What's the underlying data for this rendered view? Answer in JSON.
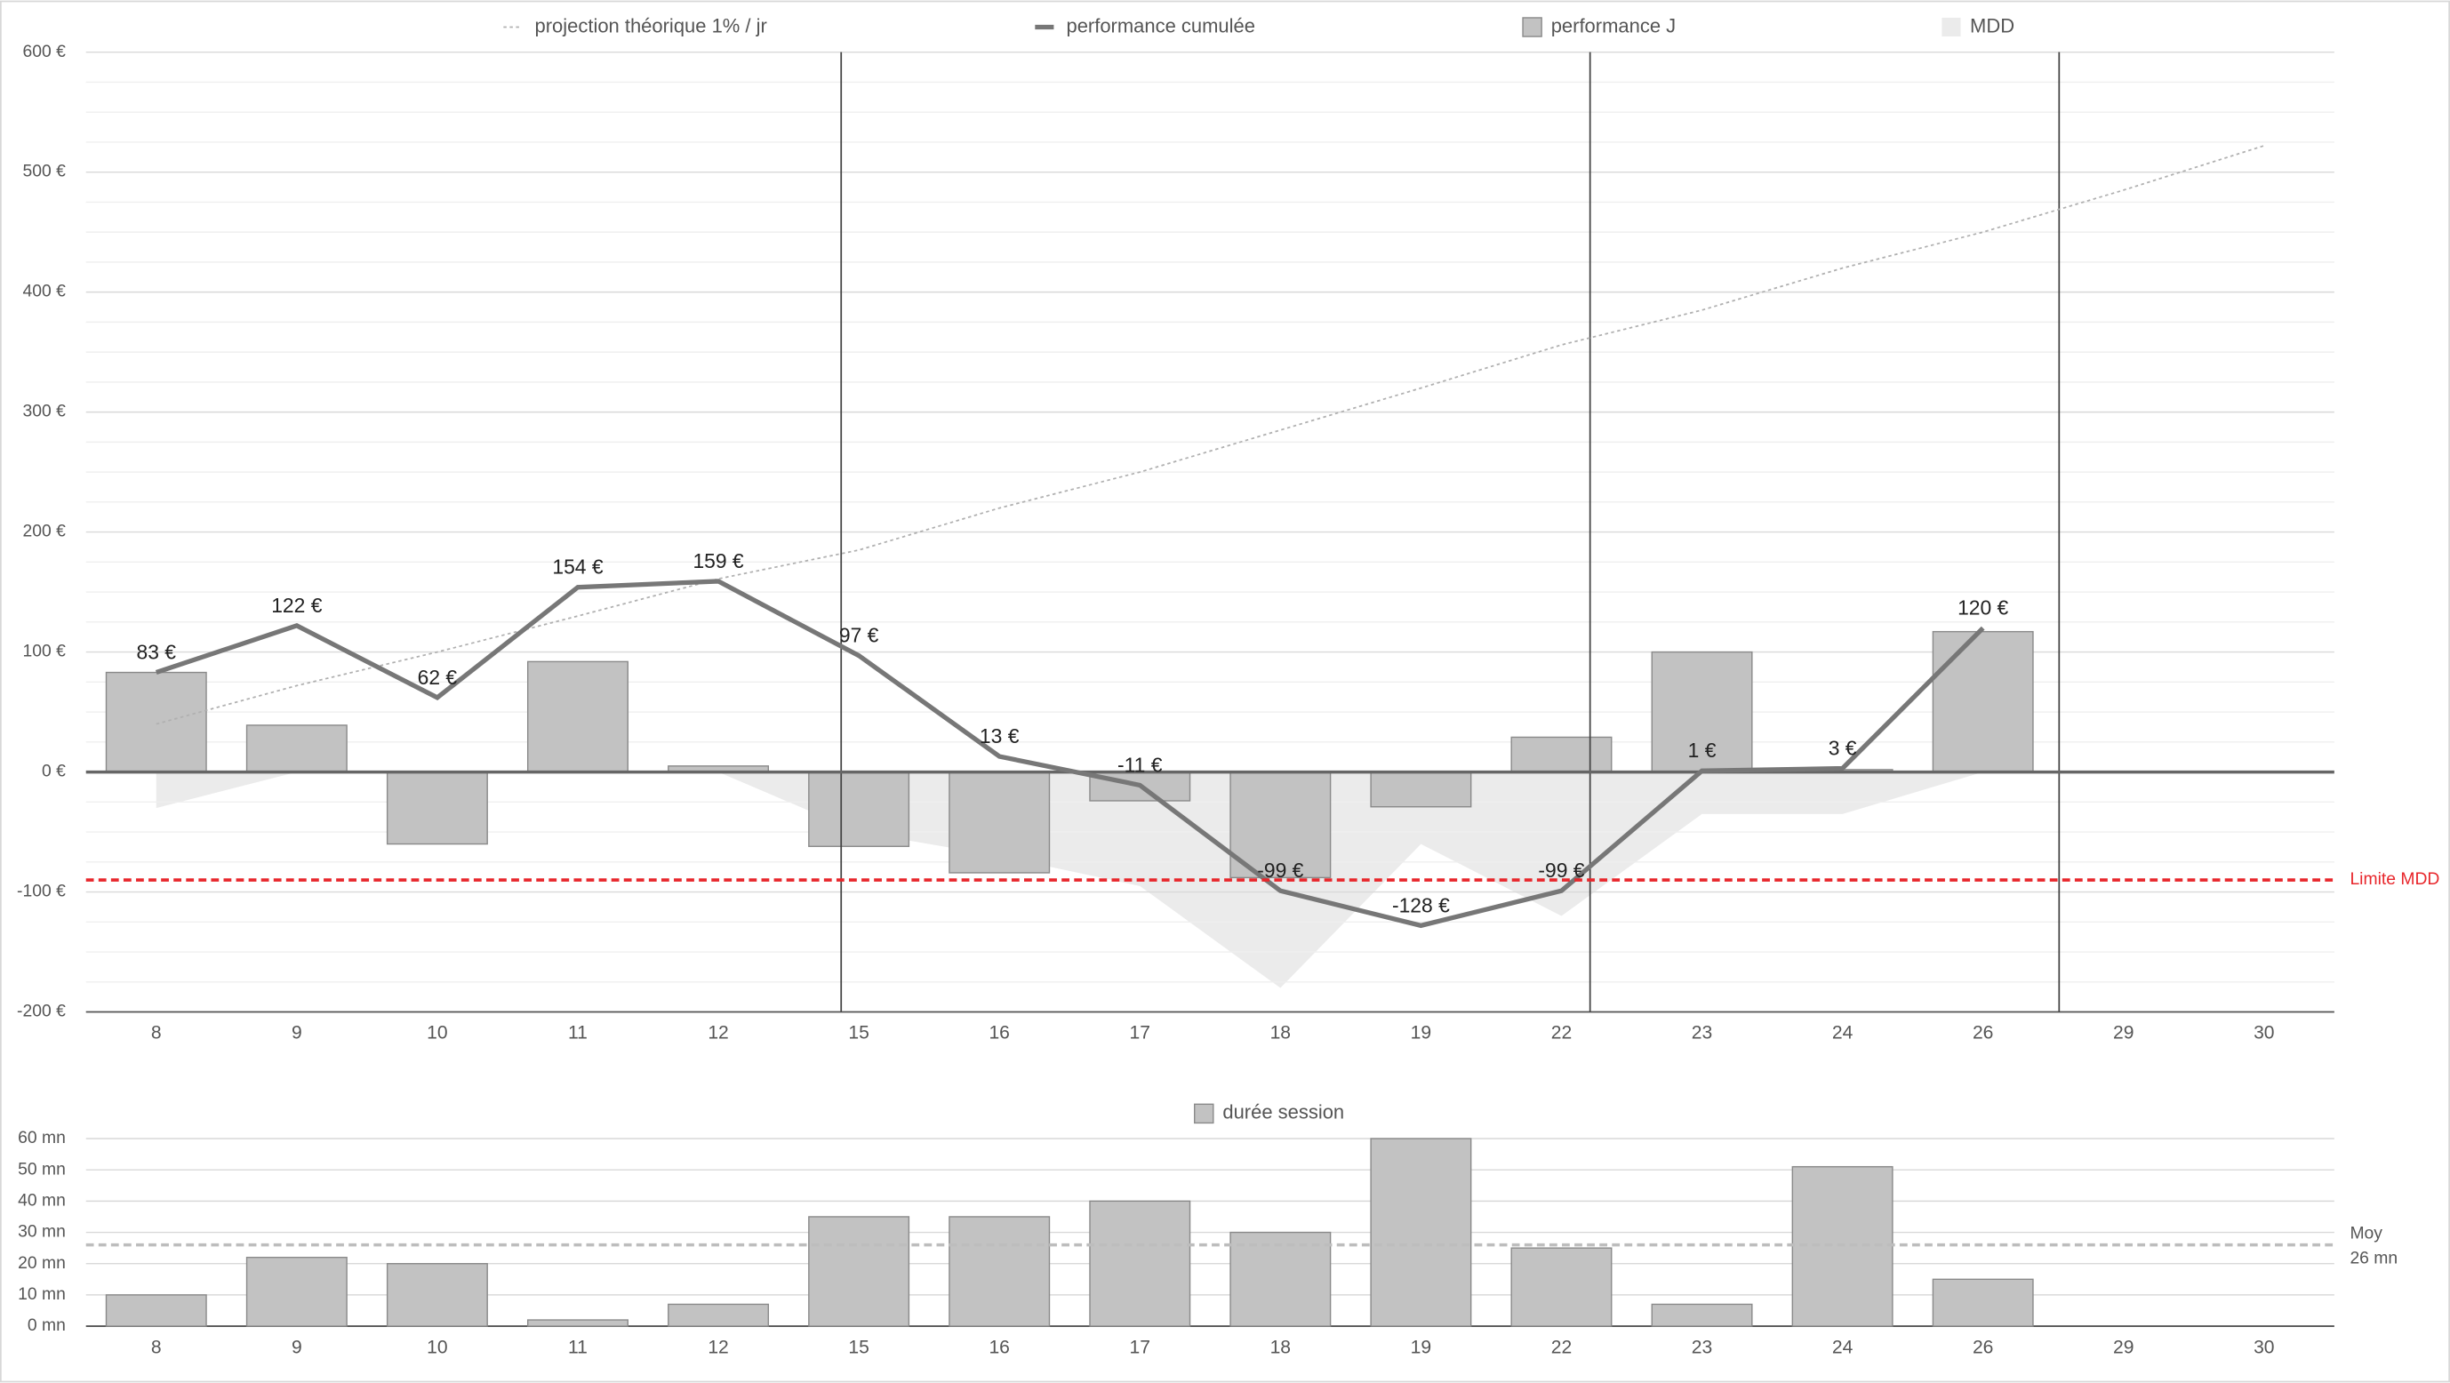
{
  "chart_data": [
    {
      "type": "bar",
      "categories": [
        "8",
        "9",
        "10",
        "11",
        "12",
        "15",
        "16",
        "17",
        "18",
        "19",
        "22",
        "23",
        "24",
        "26",
        "29",
        "30"
      ],
      "series": [
        {
          "name": "projection théorique 1% / jr",
          "type": "line",
          "dashed": true,
          "color": "#b0b0b0",
          "values": [
            40,
            72,
            100,
            130,
            161,
            185,
            220,
            250,
            285,
            320,
            356,
            385,
            420,
            450,
            485,
            522
          ]
        },
        {
          "name": "performance cumulée",
          "type": "line",
          "color": "#777777",
          "values": [
            83,
            122,
            62,
            154,
            159,
            97,
            13,
            -11,
            -99,
            -128,
            -99,
            1,
            3,
            120,
            null,
            null
          ],
          "value_labels": [
            "83 €",
            "122 €",
            "62 €",
            "154 €",
            "159 €",
            "97 €",
            "13 €",
            "-11 €",
            "-99 €",
            "-128 €",
            "-99 €",
            "1 €",
            "3 €",
            "120 €",
            null,
            null
          ]
        },
        {
          "name": "performance J",
          "type": "bar",
          "color": "#c2c2c2",
          "values": [
            83,
            39,
            -60,
            92,
            5,
            -62,
            -84,
            -24,
            -88,
            -29,
            29,
            100,
            2,
            117,
            null,
            null
          ]
        },
        {
          "name": "MDD",
          "type": "area",
          "color": "#ebebeb",
          "values": [
            -30,
            0,
            0,
            0,
            0,
            -50,
            -70,
            -95,
            -180,
            -60,
            -120,
            -35,
            -35,
            0,
            null,
            null
          ]
        }
      ],
      "ylim": [
        -200,
        600
      ],
      "yticks": [
        {
          "value": -200,
          "label": "-200 €"
        },
        {
          "value": -100,
          "label": "-100 €"
        },
        {
          "value": 0,
          "label": "0 €"
        },
        {
          "value": 100,
          "label": "100 €"
        },
        {
          "value": 200,
          "label": "200 €"
        },
        {
          "value": 300,
          "label": "300 €"
        },
        {
          "value": 400,
          "label": "400 €"
        },
        {
          "value": 500,
          "label": "500 €"
        },
        {
          "value": 600,
          "label": "600 €"
        }
      ],
      "grid": true,
      "limit": -90,
      "limit_label": "Limite MDD",
      "limit_color": "#e8262b"
    },
    {
      "type": "bar",
      "categories": [
        "8",
        "9",
        "10",
        "11",
        "12",
        "15",
        "16",
        "17",
        "18",
        "19",
        "22",
        "23",
        "24",
        "26",
        "29",
        "30"
      ],
      "series": [
        {
          "name": "durée session",
          "type": "bar",
          "color": "#c2c2c2",
          "values": [
            10,
            22,
            20,
            2,
            7,
            35,
            35,
            40,
            30,
            60,
            25,
            7,
            51,
            15,
            null,
            null
          ]
        }
      ],
      "ylim": [
        0,
        60
      ],
      "yticks": [
        {
          "value": 0,
          "label": "0 mn"
        },
        {
          "value": 10,
          "label": "10 mn"
        },
        {
          "value": 20,
          "label": "20 mn"
        },
        {
          "value": 30,
          "label": "30 mn"
        },
        {
          "value": 40,
          "label": "40 mn"
        },
        {
          "value": 50,
          "label": "50 mn"
        },
        {
          "value": 60,
          "label": "60 mn"
        }
      ],
      "grid": true,
      "mean": 26,
      "mean_label": "Moy",
      "mean_value_label": "26 mn"
    }
  ]
}
